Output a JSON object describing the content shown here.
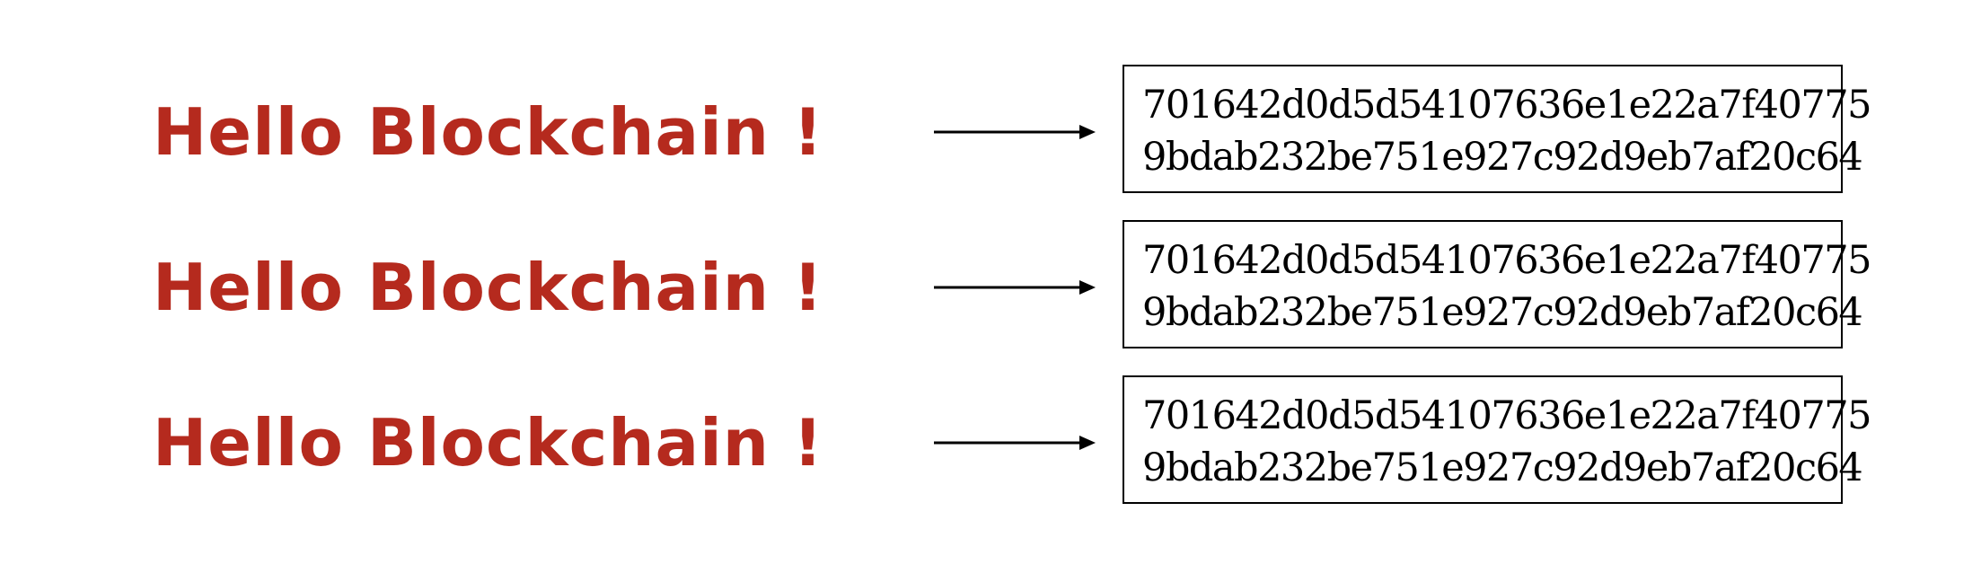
{
  "rows": [
    {
      "input": "Hello Blockchain !",
      "hash_line_1": "701642d0d5d54107636e1e22a7f40775",
      "hash_line_2": "9bdab232be751e927c92d9eb7af20c64"
    },
    {
      "input": "Hello Blockchain !",
      "hash_line_1": "701642d0d5d54107636e1e22a7f40775",
      "hash_line_2": "9bdab232be751e927c92d9eb7af20c64"
    },
    {
      "input": "Hello Blockchain !",
      "hash_line_1": "701642d0d5d54107636e1e22a7f40775",
      "hash_line_2": "9bdab232be751e927c92d9eb7af20c64"
    }
  ],
  "colors": {
    "input_text": "#b52a1e",
    "hash_text": "#000000",
    "arrow": "#000000"
  },
  "icons": {
    "arrow": "right-arrow-icon"
  }
}
